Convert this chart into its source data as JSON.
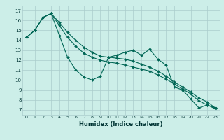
{
  "xlabel": "Humidex (Indice chaleur)",
  "xlim": [
    -0.5,
    23.5
  ],
  "ylim": [
    6.5,
    17.5
  ],
  "yticks": [
    7,
    8,
    9,
    10,
    11,
    12,
    13,
    14,
    15,
    16,
    17
  ],
  "xticks": [
    0,
    1,
    2,
    3,
    4,
    5,
    6,
    7,
    8,
    9,
    10,
    11,
    12,
    13,
    14,
    15,
    16,
    17,
    18,
    19,
    20,
    21,
    22,
    23
  ],
  "bg_color": "#cceee8",
  "grid_color": "#aacccc",
  "line_color": "#006655",
  "series": [
    [
      14.3,
      15.0,
      16.3,
      16.7,
      14.5,
      12.3,
      11.0,
      10.3,
      10.0,
      10.4,
      12.3,
      12.5,
      12.8,
      13.0,
      12.5,
      13.1,
      12.1,
      11.5,
      9.3,
      9.0,
      8.1,
      7.2,
      7.5,
      7.2
    ],
    [
      14.3,
      15.0,
      16.3,
      16.7,
      15.8,
      14.8,
      14.0,
      13.3,
      12.8,
      12.4,
      12.3,
      12.2,
      12.1,
      11.9,
      11.6,
      11.3,
      10.9,
      10.4,
      9.8,
      9.3,
      8.8,
      8.2,
      7.8,
      7.2
    ],
    [
      14.3,
      15.0,
      16.3,
      16.7,
      15.5,
      14.3,
      13.4,
      12.7,
      12.3,
      12.0,
      11.8,
      11.7,
      11.5,
      11.3,
      11.1,
      10.9,
      10.5,
      10.1,
      9.6,
      9.1,
      8.6,
      7.9,
      7.5,
      7.1
    ]
  ]
}
